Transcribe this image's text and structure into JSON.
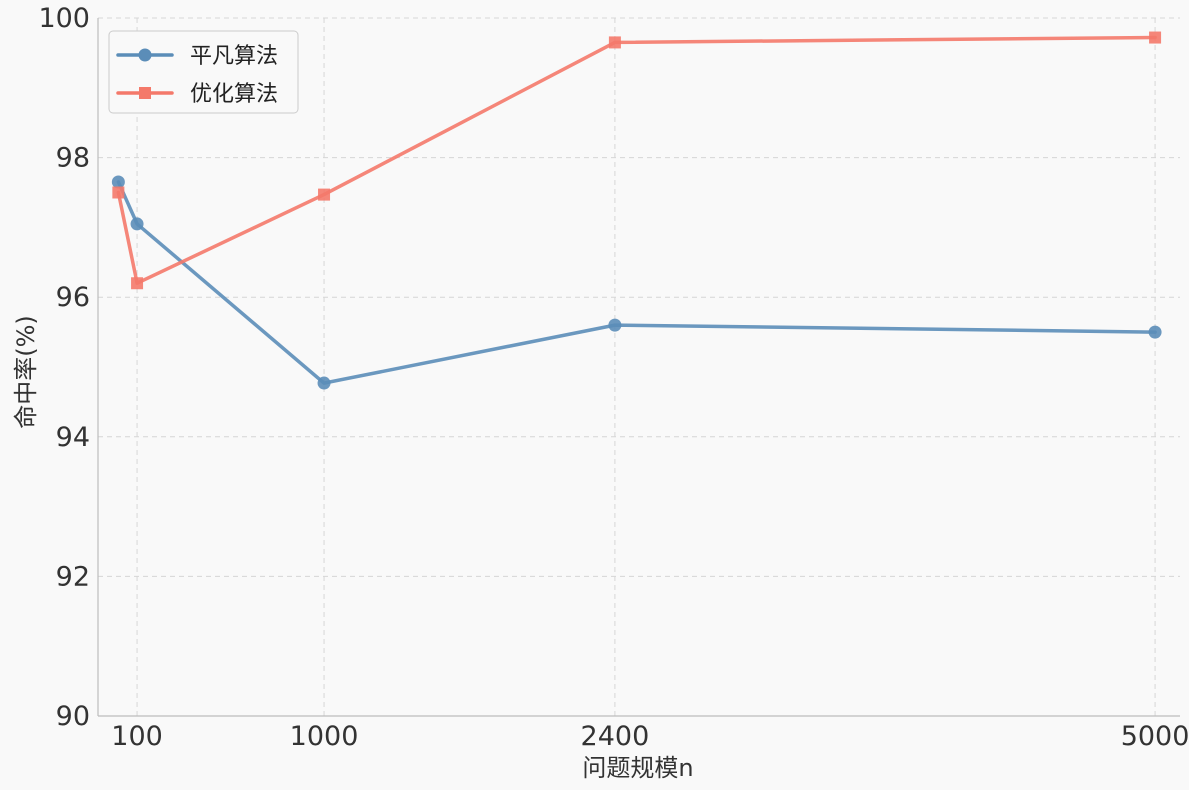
{
  "chart_data": {
    "type": "line",
    "title": "",
    "xlabel": "问题规模n",
    "ylabel": "命中率(%)",
    "xlim": [
      -88,
      5120
    ],
    "ylim": [
      90,
      100
    ],
    "x_ticks": [
      100,
      1000,
      2400,
      5000
    ],
    "y_ticks": [
      90,
      92,
      94,
      96,
      98,
      100
    ],
    "grid": true,
    "legend_position": "top-left",
    "series": [
      {
        "name": "平凡算法",
        "color": "#5b8db8",
        "marker": "circle",
        "x": [
          10,
          100,
          1000,
          2400,
          5000
        ],
        "y": [
          97.65,
          97.05,
          94.77,
          95.6,
          95.5
        ]
      },
      {
        "name": "优化算法",
        "color": "#f4796a",
        "marker": "square",
        "x": [
          10,
          100,
          1000,
          2400,
          5000
        ],
        "y": [
          97.5,
          96.2,
          97.47,
          99.65,
          99.72
        ]
      }
    ]
  }
}
